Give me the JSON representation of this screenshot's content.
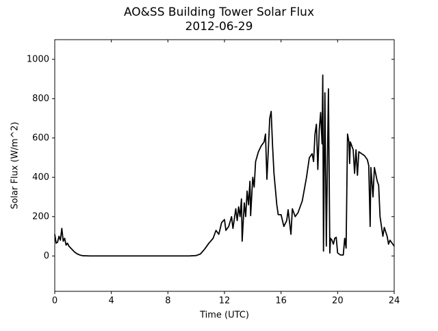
{
  "chart_data": {
    "type": "line",
    "title": "AO&SS Building Tower Solar Flux",
    "subtitle": "2012-06-29",
    "x_label": "Time (UTC)",
    "y_label": "Solar Flux (W/m^2)",
    "xlim": [
      0,
      24
    ],
    "xticks": [
      0,
      4,
      8,
      12,
      16,
      20,
      24
    ],
    "ylim": [
      -180,
      1100
    ],
    "yticks": [
      0,
      200,
      400,
      600,
      800,
      1000
    ],
    "x": [
      0,
      0.1,
      0.2,
      0.3,
      0.4,
      0.5,
      0.6,
      0.7,
      0.8,
      0.9,
      1.0,
      1.2,
      1.4,
      1.6,
      1.8,
      2.0,
      2.5,
      4,
      6,
      8,
      9.5,
      10,
      10.3,
      10.6,
      10.9,
      11.2,
      11.4,
      11.6,
      11.8,
      12,
      12.1,
      12.3,
      12.5,
      12.6,
      12.8,
      12.9,
      13,
      13.1,
      13.2,
      13.25,
      13.4,
      13.5,
      13.6,
      13.7,
      13.8,
      13.85,
      14,
      14.1,
      14.2,
      14.4,
      14.6,
      14.8,
      14.9,
      15.0,
      15.1,
      15.2,
      15.3,
      15.4,
      15.5,
      15.7,
      15.8,
      16,
      16.2,
      16.4,
      16.5,
      16.7,
      16.8,
      17.0,
      17.2,
      17.5,
      17.8,
      18,
      18.2,
      18.3,
      18.4,
      18.5,
      18.6,
      18.7,
      18.8,
      18.9,
      18.95,
      19.0,
      19.1,
      19.2,
      19.35,
      19.45,
      19.5,
      19.6,
      19.7,
      19.8,
      19.9,
      20,
      20.2,
      20.4,
      20.5,
      20.6,
      20.7,
      20.8,
      20.85,
      20.9,
      21.0,
      21.1,
      21.2,
      21.3,
      21.4,
      21.5,
      21.7,
      21.9,
      22.1,
      22.2,
      22.3,
      22.35,
      22.5,
      22.6,
      22.8,
      22.9,
      23,
      23.2,
      23.3,
      23.5,
      23.6,
      23.7,
      23.9,
      24
    ],
    "series": [
      {
        "color": "#000000",
        "values": [
          110,
          65,
          70,
          100,
          80,
          140,
          75,
          90,
          55,
          65,
          50,
          35,
          20,
          10,
          4,
          1,
          0,
          0,
          0,
          0,
          0,
          2,
          10,
          35,
          65,
          90,
          130,
          110,
          170,
          185,
          130,
          150,
          200,
          140,
          240,
          180,
          250,
          200,
          290,
          75,
          270,
          200,
          330,
          260,
          380,
          205,
          400,
          350,
          480,
          530,
          560,
          580,
          620,
          390,
          540,
          700,
          735,
          560,
          420,
          260,
          210,
          210,
          150,
          180,
          235,
          110,
          240,
          200,
          220,
          280,
          400,
          500,
          520,
          480,
          620,
          670,
          440,
          640,
          730,
          570,
          920,
          25,
          830,
          50,
          850,
          15,
          90,
          80,
          60,
          90,
          95,
          15,
          5,
          5,
          90,
          40,
          620,
          580,
          470,
          580,
          560,
          540,
          420,
          540,
          410,
          530,
          520,
          510,
          490,
          460,
          150,
          450,
          300,
          450,
          380,
          360,
          200,
          100,
          145,
          100,
          60,
          80,
          60,
          50
        ]
      }
    ]
  }
}
